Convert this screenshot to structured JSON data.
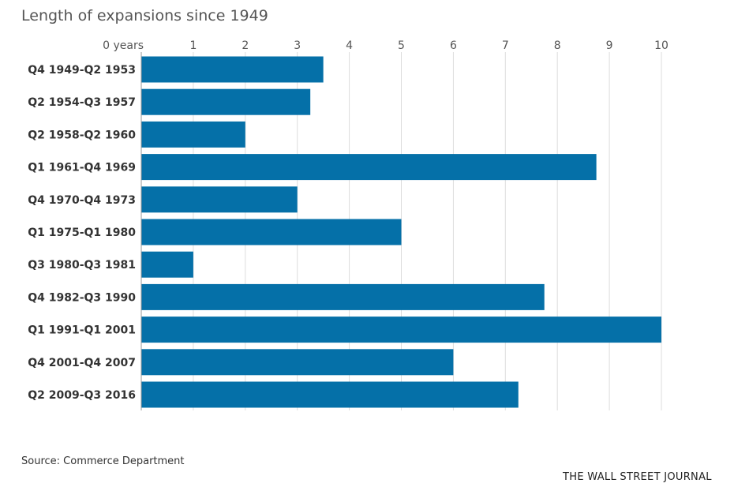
{
  "header": {
    "title": "Length of expansions since 1949"
  },
  "footer": {
    "source": "Source: Commerce Department",
    "brand": "THE WALL STREET JOURNAL"
  },
  "colors": {
    "bar": "#0570a8",
    "grid": "#dddddd",
    "axis": "#999999",
    "tick_text": "#555555",
    "category_text": "#333333"
  },
  "chart_data": {
    "type": "bar",
    "orientation": "horizontal",
    "title": "Length of expansions since 1949",
    "xlabel": "",
    "ylabel": "",
    "xlim": [
      0,
      10
    ],
    "grid": true,
    "x_ticks": [
      0,
      1,
      2,
      3,
      4,
      5,
      6,
      7,
      8,
      9,
      10
    ],
    "x_tick_labels": [
      "0 years",
      "1",
      "2",
      "3",
      "4",
      "5",
      "6",
      "7",
      "8",
      "9",
      "10"
    ],
    "categories": [
      "Q4 1949-Q2 1953",
      "Q2 1954-Q3 1957",
      "Q2 1958-Q2 1960",
      "Q1 1961-Q4 1969",
      "Q4 1970-Q4 1973",
      "Q1 1975-Q1 1980",
      "Q3 1980-Q3 1981",
      "Q4 1982-Q3 1990",
      "Q1 1991-Q1 2001",
      "Q4 2001-Q4 2007",
      "Q2 2009-Q3 2016"
    ],
    "values": [
      3.5,
      3.25,
      2.0,
      8.75,
      3.0,
      5.0,
      1.0,
      7.75,
      10.0,
      6.0,
      7.25
    ]
  }
}
